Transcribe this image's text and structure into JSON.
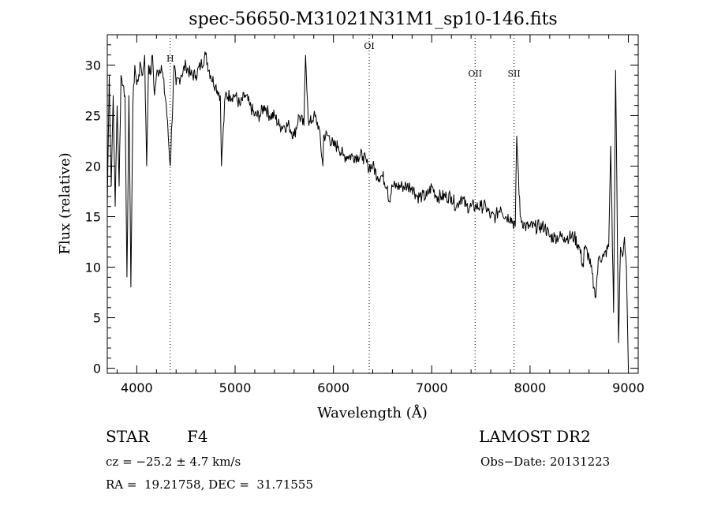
{
  "chart_data": {
    "type": "line",
    "title": "spec-56650-M31021N31M1_sp10-146.fits",
    "xlabel": "Wavelength (Å)",
    "ylabel": "Flux (relative)",
    "xlim": [
      3700,
      9100
    ],
    "ylim": [
      -0.5,
      33
    ],
    "xticks": [
      4000,
      5000,
      6000,
      7000,
      8000,
      9000
    ],
    "yticks": [
      0,
      5,
      10,
      15,
      20,
      25,
      30
    ],
    "line_labels": [
      {
        "label": "H",
        "x": 4340
      },
      {
        "label": "OI",
        "x": 6364
      },
      {
        "label": "OII",
        "x": 7441
      },
      {
        "label": "SII",
        "x": 7837
      }
    ],
    "series": [
      {
        "x": [
          3700,
          3720,
          3740,
          3760,
          3780,
          3800,
          3820,
          3840,
          3860,
          3880,
          3900,
          3920,
          3940,
          3960,
          3980,
          4000,
          4020,
          4040,
          4060,
          4080,
          4100,
          4120,
          4140,
          4160,
          4180,
          4200,
          4250,
          4300,
          4340,
          4380,
          4400,
          4450,
          4500,
          4550,
          4600,
          4650,
          4700,
          4750,
          4800,
          4850,
          4861,
          4900,
          4950,
          5000,
          5050,
          5100,
          5150,
          5200,
          5250,
          5300,
          5350,
          5400,
          5450,
          5500,
          5550,
          5600,
          5650,
          5700,
          5716,
          5750,
          5800,
          5850,
          5893,
          5900,
          5950,
          6000,
          6050,
          6100,
          6150,
          6200,
          6250,
          6300,
          6350,
          6400,
          6450,
          6500,
          6550,
          6563,
          6600,
          6650,
          6700,
          6750,
          6800,
          6850,
          6900,
          6950,
          7000,
          7050,
          7100,
          7150,
          7200,
          7250,
          7300,
          7350,
          7400,
          7450,
          7500,
          7550,
          7600,
          7650,
          7700,
          7750,
          7800,
          7850,
          7864,
          7900,
          7950,
          8000,
          8050,
          8100,
          8150,
          8200,
          8250,
          8300,
          8350,
          8400,
          8450,
          8500,
          8542,
          8550,
          8600,
          8650,
          8662,
          8700,
          8750,
          8800,
          8820,
          8850,
          8870,
          8890,
          8900,
          8920,
          8940,
          8960,
          8980,
          9000
        ],
        "y": [
          16,
          29,
          18,
          27,
          16,
          26,
          18,
          29,
          28,
          27,
          9,
          27,
          8,
          26,
          30,
          28,
          29,
          30,
          29,
          31,
          20,
          30,
          29,
          31,
          27,
          29,
          30,
          26,
          20,
          30,
          28,
          29,
          30,
          29,
          29,
          30,
          31,
          29,
          28,
          27,
          20,
          27,
          27,
          27,
          26,
          27,
          26,
          25,
          25,
          26,
          25,
          25,
          24,
          24,
          24,
          23,
          25,
          24,
          31,
          24,
          25,
          24,
          20,
          23,
          23,
          22,
          22,
          21,
          21,
          21,
          21,
          21,
          20,
          20,
          19,
          19,
          18,
          16.5,
          18,
          18,
          18,
          18,
          18,
          17,
          17,
          17,
          18,
          17,
          17,
          17,
          17,
          16,
          17,
          16,
          16,
          16,
          16,
          16,
          15,
          15,
          16,
          15,
          15,
          14,
          23,
          15,
          14,
          14,
          14,
          14,
          14,
          13,
          13,
          13,
          13,
          13,
          13,
          12,
          10,
          12,
          11,
          8,
          7,
          11,
          11,
          12,
          22,
          5.5,
          29.5,
          11,
          2.5,
          12,
          11,
          13,
          10,
          0
        ]
      }
    ]
  },
  "footer": {
    "object_type": "STAR",
    "subclass": "F4",
    "survey": "LAMOST DR2",
    "redshift": "cz = −25.2 ± 4.7 km/s",
    "obs_date": "Obs−Date: 20131223",
    "coords": "RA =  19.21758, DEC =  31.71555"
  }
}
